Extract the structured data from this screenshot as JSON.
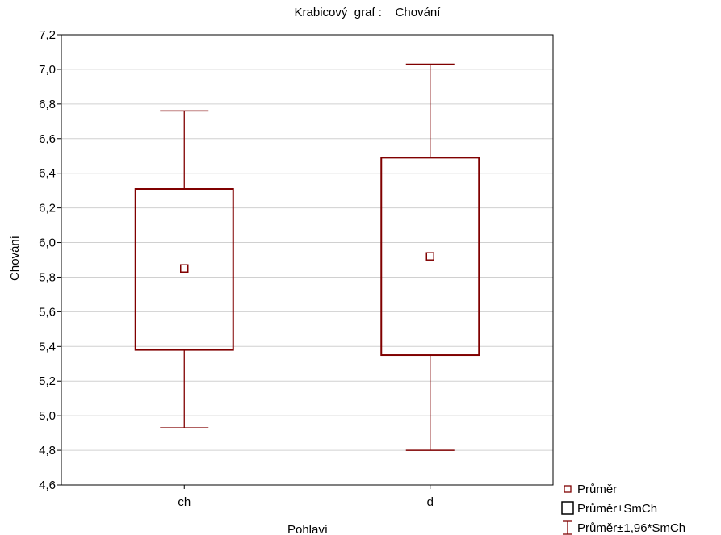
{
  "chart_data": {
    "type": "boxplot",
    "title": "Krabicový  graf :    Chování",
    "xlabel": "Pohlaví",
    "ylabel": "Chování",
    "ylim": [
      4.6,
      7.2
    ],
    "yticks": [
      "4,6",
      "4,8",
      "5,0",
      "5,2",
      "5,4",
      "5,6",
      "5,8",
      "6,0",
      "6,2",
      "6,4",
      "6,6",
      "6,8",
      "7,0",
      "7,2"
    ],
    "grid": true,
    "legend_position": "bottom-right",
    "categories": [
      "ch",
      "d"
    ],
    "series": [
      {
        "category": "ch",
        "mean": 5.85,
        "mean_minus_se": 5.38,
        "mean_plus_se": 6.31,
        "lower_whisker": 4.93,
        "upper_whisker": 6.76
      },
      {
        "category": "d",
        "mean": 5.92,
        "mean_minus_se": 5.35,
        "mean_plus_se": 6.49,
        "lower_whisker": 4.8,
        "upper_whisker": 7.03
      }
    ],
    "legend": [
      {
        "symbol": "mean",
        "label": "Průměr"
      },
      {
        "symbol": "box",
        "label": "Průměr±SmCh"
      },
      {
        "symbol": "whisker",
        "label": "Průměr±1,96*SmCh"
      }
    ],
    "color": "#800000"
  }
}
